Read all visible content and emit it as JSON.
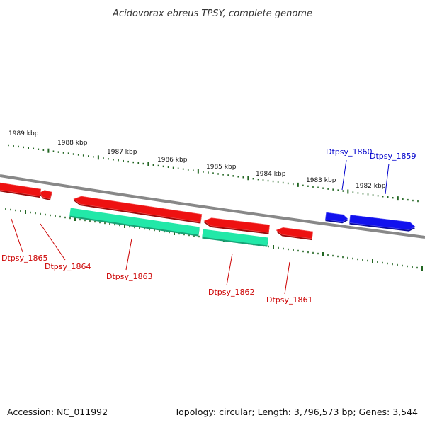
{
  "title": "Acidovorax ebreus TPSY, complete genome",
  "footer": {
    "accession": "Accession: NC_011992",
    "summary": "Topology: circular; Length: 3,796,573 bp; Genes: 3,544"
  },
  "colors": {
    "backbone": "#888888",
    "reverse_strand": "#ee1111",
    "forward_strand": "#1111ee",
    "rna": "#22e8a8",
    "ticks": "#226622",
    "label_reverse": "#cc0000",
    "label_forward": "#0000cc"
  },
  "scale": {
    "unit": "kbp",
    "labels": [
      "1989 kbp",
      "1988 kbp",
      "1987 kbp",
      "1986 kbp",
      "1985 kbp",
      "1984 kbp",
      "1983 kbp",
      "1982 kbp"
    ]
  },
  "genes": [
    {
      "label": "Dtpsy_1865",
      "strand": "reverse",
      "type": "CDS"
    },
    {
      "label": "Dtpsy_1864",
      "strand": "reverse",
      "type": "CDS"
    },
    {
      "label": "Dtpsy_1863",
      "strand": "reverse",
      "type": "CDS+RNA"
    },
    {
      "label": "Dtpsy_1862",
      "strand": "reverse",
      "type": "CDS+RNA"
    },
    {
      "label": "Dtpsy_1861",
      "strand": "reverse",
      "type": "CDS"
    },
    {
      "label": "Dtpsy_1860",
      "strand": "forward",
      "type": "CDS"
    },
    {
      "label": "Dtpsy_1859",
      "strand": "forward",
      "type": "CDS"
    }
  ]
}
